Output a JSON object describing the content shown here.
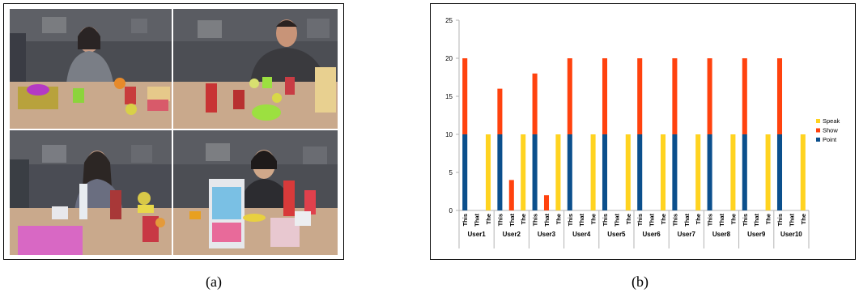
{
  "captions": {
    "a": "(a)",
    "b": "(b)"
  },
  "chart_data": {
    "type": "bar",
    "stacked": true,
    "ylim": [
      0,
      25
    ],
    "yticks": [
      0,
      5,
      10,
      15,
      20,
      25
    ],
    "groups": [
      "User1",
      "User2",
      "User3",
      "User4",
      "User5",
      "User6",
      "User7",
      "User8",
      "User9",
      "User10"
    ],
    "categories": [
      "This",
      "That",
      "The"
    ],
    "legend": {
      "position": "right",
      "entries": [
        "Speak",
        "Show",
        "Point"
      ]
    },
    "colors": {
      "Point": "#0b4f8c",
      "Show": "#ff420e",
      "Speak": "#ffd320"
    },
    "series": [
      {
        "name": "Point",
        "values": [
          [
            10,
            0,
            0
          ],
          [
            10,
            0,
            0
          ],
          [
            10,
            0,
            0
          ],
          [
            10,
            0,
            0
          ],
          [
            10,
            0,
            0
          ],
          [
            10,
            0,
            0
          ],
          [
            10,
            0,
            0
          ],
          [
            10,
            0,
            0
          ],
          [
            10,
            0,
            0
          ],
          [
            10,
            0,
            0
          ]
        ]
      },
      {
        "name": "Show",
        "values": [
          [
            10,
            0,
            0
          ],
          [
            6,
            4,
            0
          ],
          [
            8,
            2,
            0
          ],
          [
            10,
            0,
            0
          ],
          [
            10,
            0,
            0
          ],
          [
            10,
            0,
            0
          ],
          [
            10,
            0,
            0
          ],
          [
            10,
            0,
            0
          ],
          [
            10,
            0,
            0
          ],
          [
            10,
            0,
            0
          ]
        ]
      },
      {
        "name": "Speak",
        "values": [
          [
            0,
            0,
            10
          ],
          [
            0,
            0,
            10
          ],
          [
            0,
            0,
            10
          ],
          [
            0,
            0,
            10
          ],
          [
            0,
            0,
            10
          ],
          [
            0,
            0,
            10
          ],
          [
            0,
            0,
            10
          ],
          [
            0,
            0,
            10
          ],
          [
            0,
            0,
            10
          ],
          [
            0,
            0,
            10
          ]
        ]
      }
    ],
    "grid": false
  }
}
